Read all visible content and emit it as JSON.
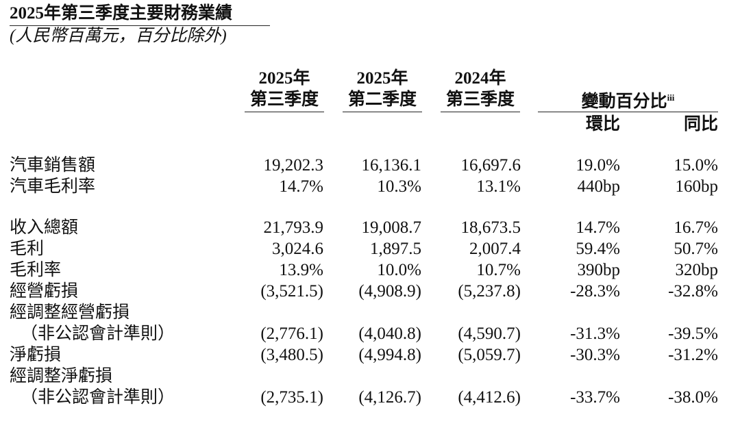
{
  "header": {
    "title": "2025年第三季度主要財務業績",
    "subtitle": "(人民幣百萬元，百分比除外)"
  },
  "table": {
    "columns": [
      {
        "year": "2025年",
        "quarter": "第三季度"
      },
      {
        "year": "2025年",
        "quarter": "第二季度"
      },
      {
        "year": "2024年",
        "quarter": "第三季度"
      }
    ],
    "change_header": "變動百分比",
    "change_note": "iii",
    "change_columns": [
      "環比",
      "同比"
    ],
    "sections": [
      {
        "rows": [
          {
            "label": "汽車銷售額",
            "values": [
              "19,202.3",
              "16,136.1",
              "16,697.6",
              "19.0%",
              "15.0%"
            ]
          },
          {
            "label": "汽車毛利率",
            "values": [
              "14.7%",
              "10.3%",
              "13.1%",
              "440bp",
              "160bp"
            ]
          }
        ]
      },
      {
        "rows": [
          {
            "label": "收入總額",
            "values": [
              "21,793.9",
              "19,008.7",
              "18,673.5",
              "14.7%",
              "16.7%"
            ]
          },
          {
            "label": "毛利",
            "values": [
              "3,024.6",
              "1,897.5",
              "2,007.4",
              "59.4%",
              "50.7%"
            ]
          },
          {
            "label": "毛利率",
            "values": [
              "13.9%",
              "10.0%",
              "10.7%",
              "390bp",
              "320bp"
            ]
          },
          {
            "label": "經營虧損",
            "values": [
              "(3,521.5)",
              "(4,908.9)",
              "(5,237.8)",
              "-28.3%",
              "-32.8%"
            ]
          },
          {
            "label": "經調整經營虧損",
            "sublabel": "（非公認會計準則）",
            "values": [
              "(2,776.1)",
              "(4,040.8)",
              "(4,590.7)",
              "-31.3%",
              "-39.5%"
            ]
          },
          {
            "label": "淨虧損",
            "values": [
              "(3,480.5)",
              "(4,994.8)",
              "(5,059.7)",
              "-30.3%",
              "-31.2%"
            ]
          },
          {
            "label": "經調整淨虧損",
            "sublabel": "（非公認會計準則）",
            "values": [
              "(2,735.1)",
              "(4,126.7)",
              "(4,412.6)",
              "-33.7%",
              "-38.0%"
            ]
          }
        ]
      }
    ]
  }
}
